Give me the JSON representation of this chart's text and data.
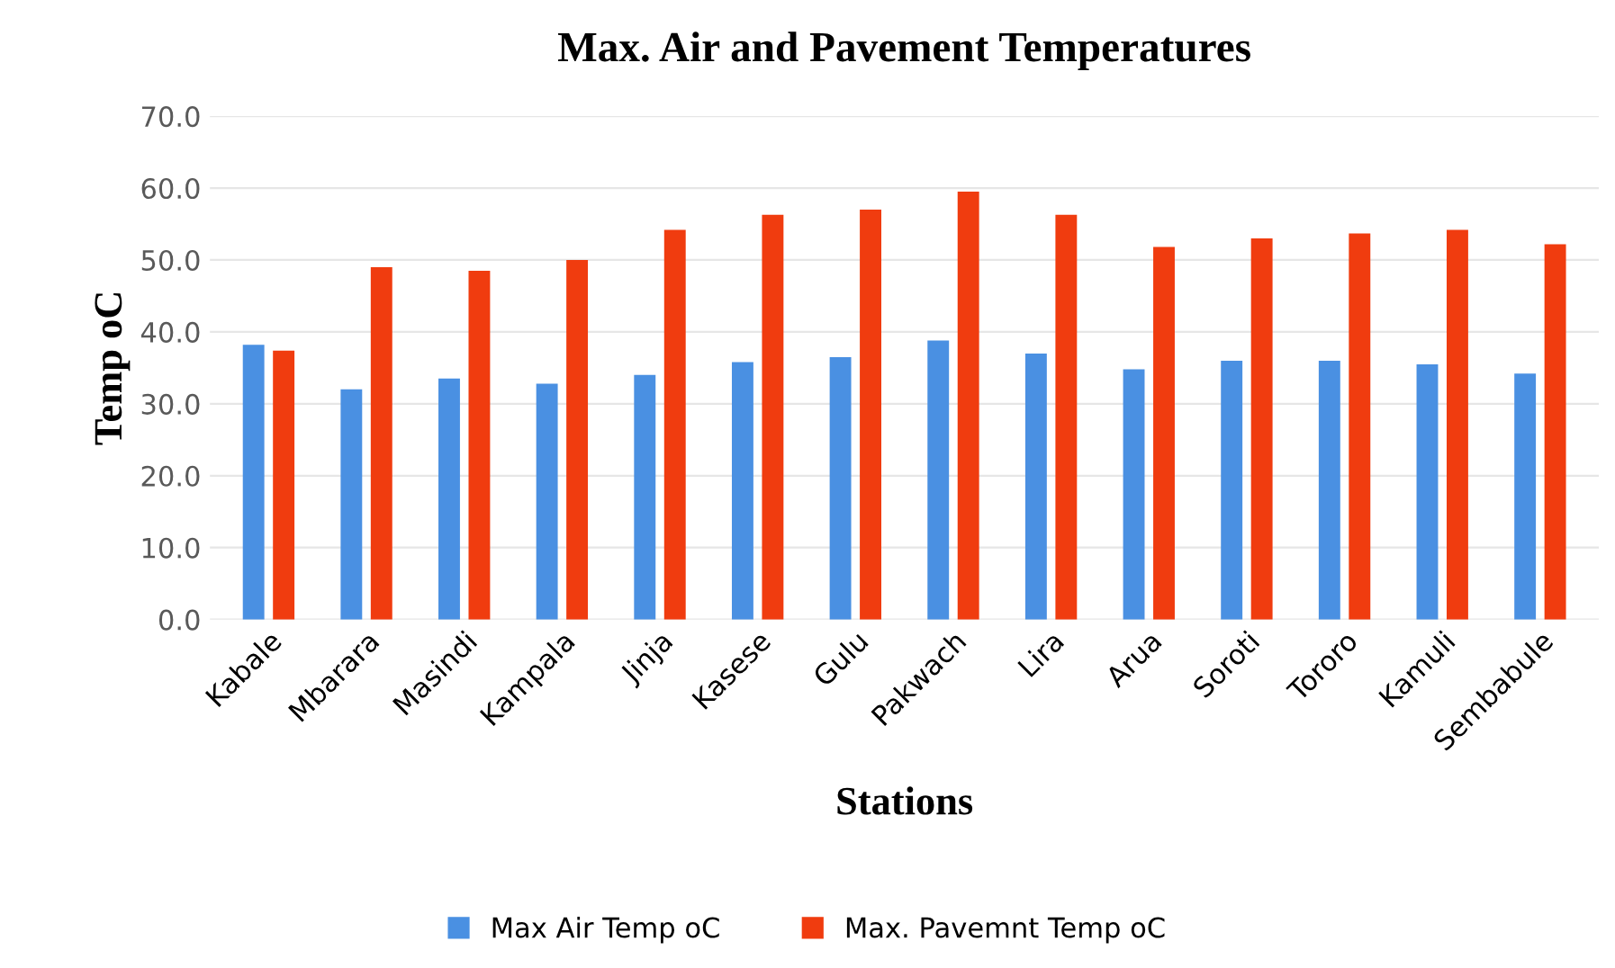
{
  "chart_data": {
    "type": "bar",
    "title": "Max. Air and Pavement Temperatures",
    "xlabel": "Stations",
    "ylabel": "Temp oC",
    "categories": [
      "Kabale",
      "Mbarara",
      "Masindi",
      "Kampala",
      "Jinja",
      "Kasese",
      "Gulu",
      "Pakwach",
      "Lira",
      "Arua",
      "Soroti",
      "Tororo",
      "Kamuli",
      "Sembabule"
    ],
    "series": [
      {
        "name": "Max Air Temp oC",
        "color": "#4a90e2",
        "values": [
          38.2,
          32.0,
          33.5,
          32.8,
          34.0,
          35.8,
          36.5,
          38.8,
          37.0,
          34.8,
          36.0,
          36.0,
          35.5,
          34.2
        ]
      },
      {
        "name": "Max. Pavemnt Temp oC",
        "color": "#f03c0f",
        "values": [
          37.4,
          49.0,
          48.5,
          50.0,
          54.2,
          56.3,
          57.0,
          59.5,
          56.3,
          51.8,
          53.0,
          53.7,
          54.2,
          52.2
        ]
      }
    ],
    "ylim": [
      0,
      70
    ],
    "yticks": [
      {
        "value": 0,
        "label": "0.0"
      },
      {
        "value": 10,
        "label": "10.0"
      },
      {
        "value": 20,
        "label": "20.0"
      },
      {
        "value": 30,
        "label": "30.0"
      },
      {
        "value": 40,
        "label": "40.0"
      },
      {
        "value": 50,
        "label": "50.0"
      },
      {
        "value": 60,
        "label": "60.0"
      },
      {
        "value": 70,
        "label": "70.0"
      }
    ],
    "grid": "y",
    "legend": "bottom"
  }
}
